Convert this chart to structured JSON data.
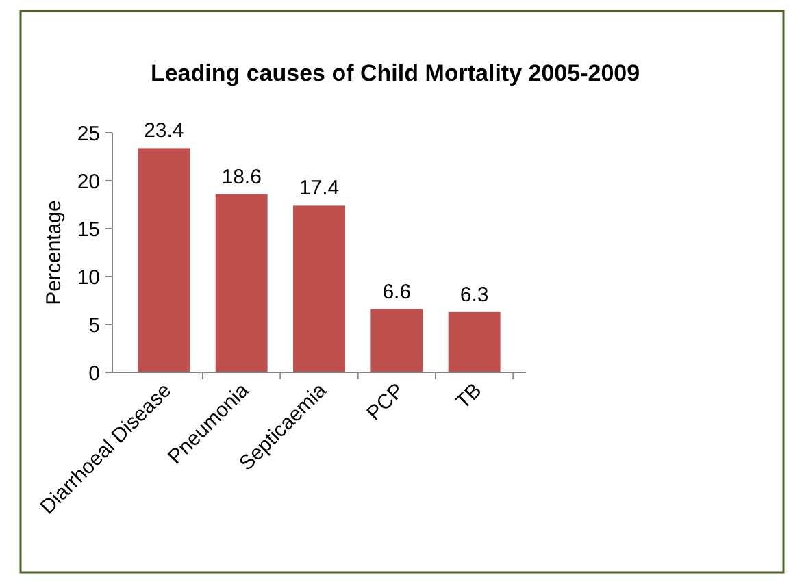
{
  "chart_data": {
    "type": "bar",
    "title": "Leading causes of Child Mortality 2005-2009",
    "ylabel": "Percentage",
    "categories": [
      "Diarrhoeal Disease",
      "Pneumonia",
      "Septicaemia",
      "PCP",
      "TB"
    ],
    "values": [
      23.4,
      18.6,
      17.4,
      6.6,
      6.3
    ],
    "color": "#c0504d",
    "ylim": [
      0,
      25
    ],
    "yticks": [
      0,
      5,
      10,
      15,
      20,
      25
    ],
    "data_labels": true
  }
}
